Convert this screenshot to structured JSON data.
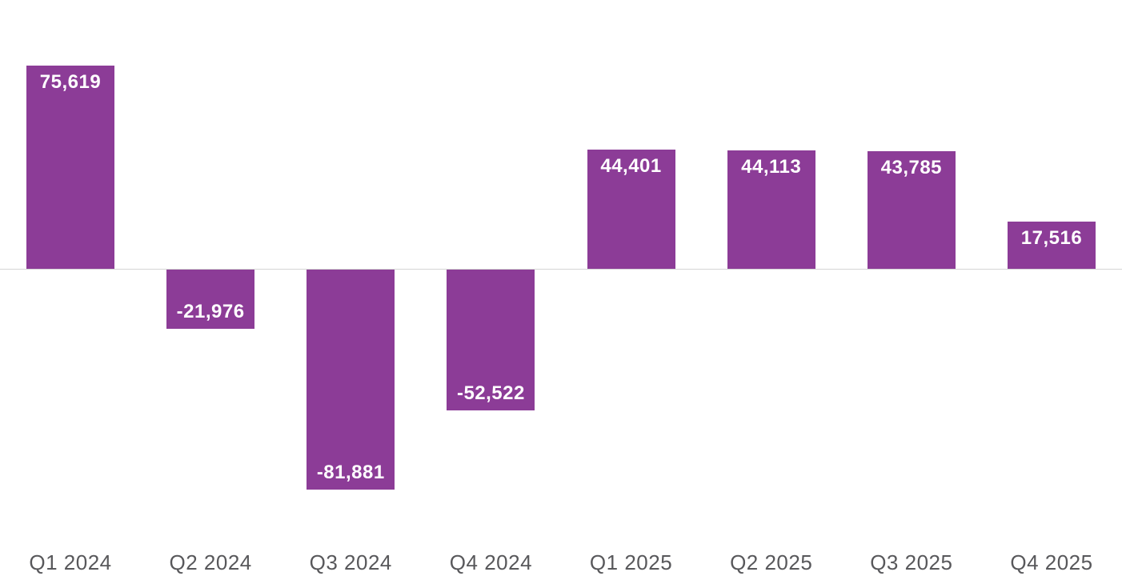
{
  "chart_data": {
    "type": "bar",
    "categories": [
      "Q1 2024",
      "Q2 2024",
      "Q3 2024",
      "Q4 2024",
      "Q1 2025",
      "Q2 2025",
      "Q3 2025",
      "Q4 2025"
    ],
    "values": [
      75619,
      -21976,
      -81881,
      -52522,
      44401,
      44113,
      43785,
      17516
    ],
    "value_labels": [
      "75,619",
      "-21,976",
      "-81,881",
      "-52,522",
      "44,401",
      "44,113",
      "43,785",
      "17,516"
    ],
    "title": "",
    "xlabel": "",
    "ylabel": "",
    "ylim": [
      -90000,
      80000
    ],
    "grid": false,
    "legend": false,
    "value_label_position": "inside-end",
    "colors": {
      "bar": "#8c3c97",
      "value_label": "#ffffff",
      "axis_label": "#58585b",
      "zero_line": "#d5d5d5",
      "background": "#ffffff"
    }
  }
}
